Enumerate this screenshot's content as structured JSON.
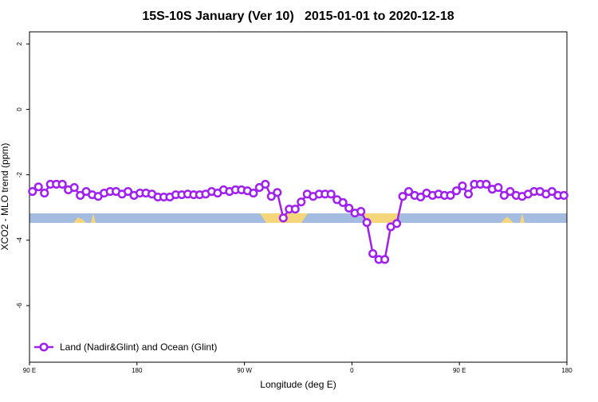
{
  "chart_data": {
    "type": "line",
    "title": "15S-10S January (Ver 10)   2015-01-01 to 2020-12-18",
    "x_label": "Longitude (deg E)",
    "y_label": "XCO2 - MLO trend (ppm)",
    "xlim": [
      90,
      540
    ],
    "xticks": [
      {
        "value": 90,
        "label": "90 E"
      },
      180,
      {
        "value": 270,
        "label": "90 W"
      },
      {
        "value": 360,
        "label": "0"
      },
      {
        "value": 450,
        "label": "90 E"
      },
      {
        "value": 540,
        "label": "180"
      }
    ],
    "ylim": [
      -7.73,
      2.37
    ],
    "yticks": [
      2,
      0,
      -2,
      -4,
      -6
    ],
    "legend": "bottom-left",
    "x": [
      92.5,
      97.5,
      102.5,
      107.5,
      112.5,
      117.5,
      122.5,
      127.5,
      132.5,
      137.5,
      142.5,
      147.5,
      152.5,
      157.5,
      162.5,
      167.5,
      172.5,
      177.5,
      182.5,
      187.5,
      192.5,
      197.5,
      202.5,
      207.5,
      212.5,
      217.5,
      222.5,
      227.5,
      232.5,
      237.5,
      242.5,
      247.5,
      252.5,
      257.5,
      262.5,
      267.5,
      272.5,
      277.5,
      282.5,
      287.5,
      292.5,
      297.5,
      302.5,
      307.5,
      312.5,
      317.5,
      322.5,
      327.5,
      332.5,
      337.5,
      342.5,
      347.5,
      352.5,
      357.5,
      362.5,
      367.5,
      372.5,
      377.5,
      382.5,
      387.5,
      392.5,
      397.5,
      402.5,
      407.5,
      412.5,
      417.5,
      422.5,
      427.5,
      432.5,
      437.5,
      442.5,
      447.5,
      452.5,
      457.5,
      462.5,
      467.5,
      472.5,
      477.5,
      482.5,
      487.5,
      492.5,
      497.5,
      502.5,
      507.5,
      512.5,
      517.5,
      522.5,
      527.5,
      532.5,
      537.5
    ],
    "series": [
      {
        "name": "Land (Nadir&Glint) and Ocean (Glint)",
        "color": "#a020f0",
        "values": [
          -2.51,
          -2.37,
          -2.56,
          -2.29,
          -2.29,
          -2.29,
          -2.46,
          -2.39,
          -2.63,
          -2.51,
          -2.61,
          -2.66,
          -2.56,
          -2.51,
          -2.51,
          -2.59,
          -2.51,
          -2.63,
          -2.56,
          -2.56,
          -2.59,
          -2.68,
          -2.68,
          -2.68,
          -2.61,
          -2.61,
          -2.59,
          -2.61,
          -2.61,
          -2.59,
          -2.51,
          -2.56,
          -2.46,
          -2.51,
          -2.46,
          -2.46,
          -2.49,
          -2.56,
          -2.39,
          -2.29,
          -2.66,
          -2.54,
          -3.32,
          -3.05,
          -3.05,
          -2.83,
          -2.59,
          -2.66,
          -2.59,
          -2.59,
          -2.59,
          -2.76,
          -2.85,
          -3.02,
          -3.17,
          -3.12,
          -3.46,
          -4.41,
          -4.59,
          -4.59,
          -3.59,
          -3.49,
          -2.66,
          -2.51,
          -2.63,
          -2.68,
          -2.56,
          -2.63,
          -2.59,
          -2.63,
          -2.63,
          -2.49,
          -2.34,
          -2.59,
          -2.29,
          -2.29,
          -2.29,
          -2.44,
          -2.39,
          -2.63,
          -2.51,
          -2.63,
          -2.66,
          -2.59,
          -2.51,
          -2.51,
          -2.59,
          -2.51,
          -2.63,
          -2.63
        ]
      }
    ]
  }
}
